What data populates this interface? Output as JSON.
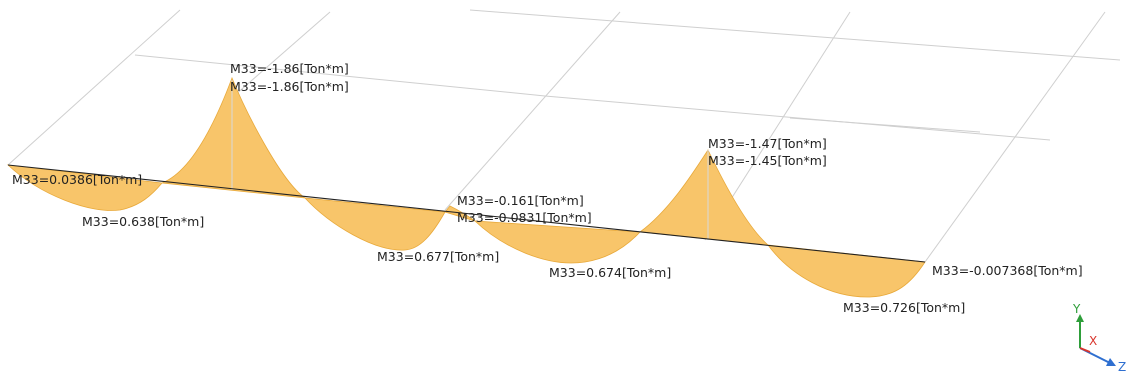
{
  "diagram": {
    "moment_labels": [
      {
        "id": "top1a",
        "text": "M33=-1.86[Ton*m]"
      },
      {
        "id": "top1b",
        "text": "M33=-1.86[Ton*m]"
      },
      {
        "id": "end_left",
        "text": "M33=0.0386[Ton*m]"
      },
      {
        "id": "span1",
        "text": "M33=0.638[Ton*m]"
      },
      {
        "id": "span2",
        "text": "M33=0.677[Ton*m]"
      },
      {
        "id": "mid_a",
        "text": "M33=-0.161[Ton*m]"
      },
      {
        "id": "mid_b",
        "text": "M33=-0.0831[Ton*m]"
      },
      {
        "id": "span3",
        "text": "M33=0.674[Ton*m]"
      },
      {
        "id": "top2a",
        "text": "M33=-1.47[Ton*m]"
      },
      {
        "id": "top2b",
        "text": "M33=-1.45[Ton*m]"
      },
      {
        "id": "end_right",
        "text": "M33=-0.007368[Ton*m]"
      },
      {
        "id": "span4",
        "text": "M33=0.726[Ton*m]"
      }
    ],
    "diagram_color": "#f8c56a",
    "axes": {
      "y": {
        "label": "Y",
        "color": "#2e9e3a"
      },
      "x": {
        "label": "X",
        "color": "#d9342b"
      },
      "z": {
        "label": "Z",
        "color": "#2f6fd0"
      }
    }
  }
}
